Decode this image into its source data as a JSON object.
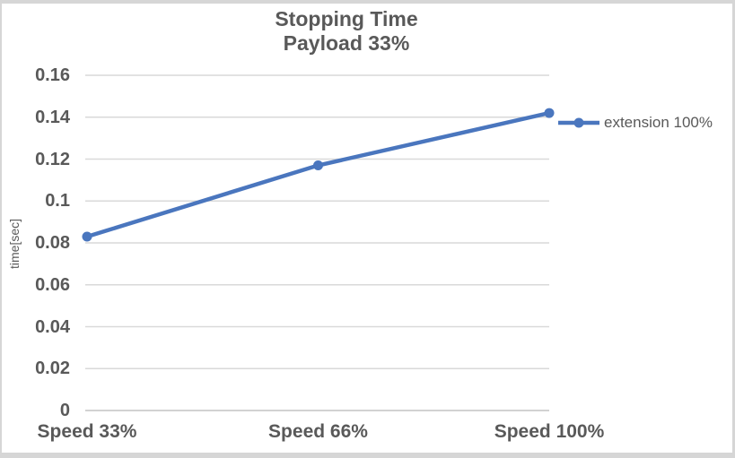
{
  "chart": {
    "title_line1": "Stopping Time",
    "title_line2": "Payload 33%",
    "y_axis_title": "time[sec]"
  },
  "chart_data": {
    "type": "line",
    "title": "Stopping Time",
    "subtitle": "Payload 33%",
    "categories": [
      "Speed 33%",
      "Speed 66%",
      "Speed 100%"
    ],
    "series": [
      {
        "name": "extension 100%",
        "values": [
          0.083,
          0.117,
          0.142
        ]
      }
    ],
    "xlabel": "",
    "ylabel": "time[sec]",
    "ylim": [
      0,
      0.16
    ],
    "ytick_step": 0.02,
    "ytick_labels": [
      "0",
      "0.02",
      "0.04",
      "0.06",
      "0.08",
      "0.1",
      "0.12",
      "0.14",
      "0.16"
    ],
    "grid": true,
    "legend_position": "right",
    "colors": {
      "series": "#4A76BE",
      "text": "#595959",
      "gridline": "#D9D9D9",
      "axis_line": "#C4C4C4",
      "frame": "#D6D6D6"
    }
  }
}
